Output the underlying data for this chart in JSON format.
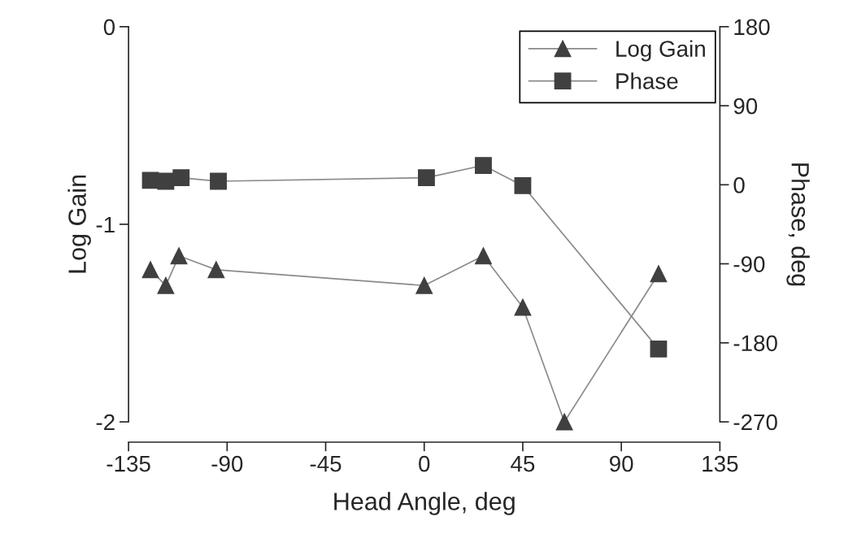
{
  "chart_data": {
    "type": "line",
    "xlabel": "Head Angle, deg",
    "ylabel": "Log Gain",
    "y2label": "Phase, deg",
    "xlim": [
      -135,
      135
    ],
    "xticks": [
      -135,
      -90,
      -45,
      0,
      45,
      90,
      135
    ],
    "ylim": [
      -2,
      0
    ],
    "yticks": [
      0,
      -1,
      -2
    ],
    "y2lim": [
      -270,
      180
    ],
    "y2ticks": [
      180,
      90,
      0,
      -90,
      -180,
      -270
    ],
    "legend": "top right",
    "line_style": "solid",
    "grid": false,
    "series": [
      {
        "name": "Log Gain",
        "color": "#404040",
        "marker": "triangle",
        "x": [
          -125,
          -118,
          -112,
          -95,
          0,
          27,
          45,
          64,
          107
        ],
        "values": [
          -1.23,
          -1.31,
          -1.16,
          -1.23,
          -1.31,
          -1.16,
          -1.42,
          -2.0,
          -1.25
        ]
      },
      {
        "name": "Phase",
        "color": "#404040",
        "marker": "square",
        "axis": "y2",
        "x": [
          -125,
          -118,
          -111,
          -94,
          1,
          27,
          45,
          107
        ],
        "values": [
          5,
          4,
          8,
          4,
          8,
          22,
          -1,
          -187
        ]
      }
    ]
  }
}
